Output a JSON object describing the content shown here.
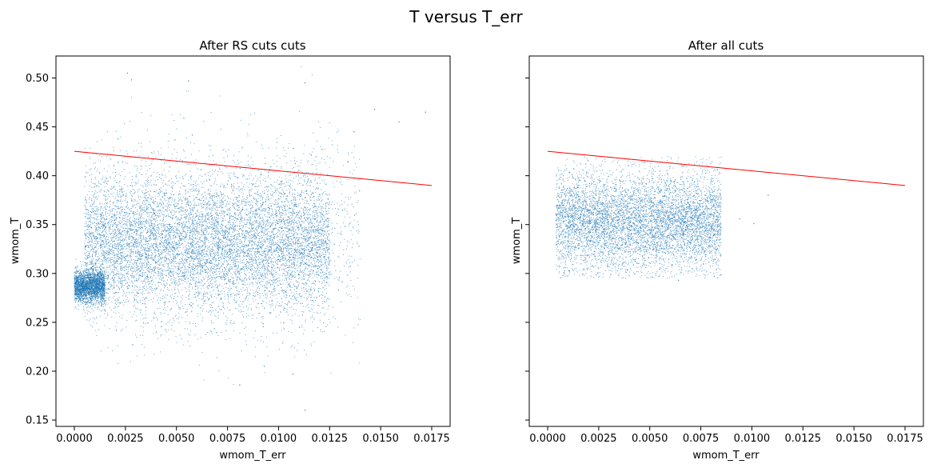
{
  "figure": {
    "suptitle": "T versus T_err"
  },
  "chart_data": [
    {
      "type": "scatter",
      "title": "After RS cuts cuts",
      "xlabel": "wmom_T_err",
      "ylabel": "wmom_T",
      "xlim": [
        -0.0009,
        0.0184
      ],
      "ylim": [
        0.1435,
        0.5225
      ],
      "x_ticks": [
        0.0,
        0.0025,
        0.005,
        0.0075,
        0.01,
        0.0125,
        0.015,
        0.0175
      ],
      "x_tick_labels": [
        "0.0000",
        "0.0025",
        "0.0050",
        "0.0075",
        "0.0100",
        "0.0125",
        "0.0150",
        "0.0175"
      ],
      "y_ticks": [
        0.15,
        0.2,
        0.25,
        0.3,
        0.35,
        0.4,
        0.45,
        0.5
      ],
      "y_tick_labels": [
        "0.15",
        "0.20",
        "0.25",
        "0.30",
        "0.35",
        "0.40",
        "0.45",
        "0.50"
      ],
      "point_color": "#1f77b4",
      "line_color": "#ff0000",
      "line": {
        "x": [
          0.0,
          0.0175
        ],
        "y": [
          0.425,
          0.39
        ]
      },
      "clusters": [
        {
          "x_min": 0.0,
          "x_max": 0.0015,
          "y_mean": 0.287,
          "y_sd": 0.008,
          "count": 2500
        },
        {
          "x_min": 0.0005,
          "x_max": 0.0125,
          "y_mean": 0.33,
          "y_sd": 0.035,
          "count": 9000
        },
        {
          "x_min": 0.0005,
          "x_max": 0.014,
          "y_mean": 0.34,
          "y_sd": 0.05,
          "count": 1500
        }
      ],
      "outliers": [
        {
          "x": 0.0026,
          "y": 0.505
        },
        {
          "x": 0.0028,
          "y": 0.498
        },
        {
          "x": 0.0056,
          "y": 0.497
        },
        {
          "x": 0.0113,
          "y": 0.495
        },
        {
          "x": 0.0137,
          "y": 0.445
        },
        {
          "x": 0.0147,
          "y": 0.468
        },
        {
          "x": 0.0159,
          "y": 0.455
        },
        {
          "x": 0.0172,
          "y": 0.465
        },
        {
          "x": 0.0113,
          "y": 0.16
        },
        {
          "x": 0.0081,
          "y": 0.186
        },
        {
          "x": 0.0107,
          "y": 0.197
        },
        {
          "x": 0.0093,
          "y": 0.205
        }
      ]
    },
    {
      "type": "scatter",
      "title": "After all cuts",
      "xlabel": "wmom_T_err",
      "ylabel": "wmom_T",
      "xlim": [
        -0.0009,
        0.0184
      ],
      "ylim": [
        0.1435,
        0.5225
      ],
      "shared_y": true,
      "x_ticks": [
        0.0,
        0.0025,
        0.005,
        0.0075,
        0.01,
        0.0125,
        0.015,
        0.0175
      ],
      "x_tick_labels": [
        "0.0000",
        "0.0025",
        "0.0050",
        "0.0075",
        "0.0100",
        "0.0125",
        "0.0150",
        "0.0175"
      ],
      "y_ticks": [
        0.15,
        0.2,
        0.25,
        0.3,
        0.35,
        0.4,
        0.45,
        0.5
      ],
      "point_color": "#1f77b4",
      "line_color": "#ff0000",
      "line": {
        "x": [
          0.0,
          0.0175
        ],
        "y": [
          0.425,
          0.39
        ]
      },
      "clusters": [
        {
          "x_min": 0.0004,
          "x_max": 0.0085,
          "y_mean": 0.353,
          "y_sd": 0.025,
          "y_min": 0.295,
          "y_max": 0.42,
          "count": 6500
        }
      ],
      "outliers": [
        {
          "x": 0.0108,
          "y": 0.38
        },
        {
          "x": 0.0101,
          "y": 0.351
        },
        {
          "x": 0.0094,
          "y": 0.356
        },
        {
          "x": 0.0064,
          "y": 0.293
        }
      ]
    }
  ]
}
